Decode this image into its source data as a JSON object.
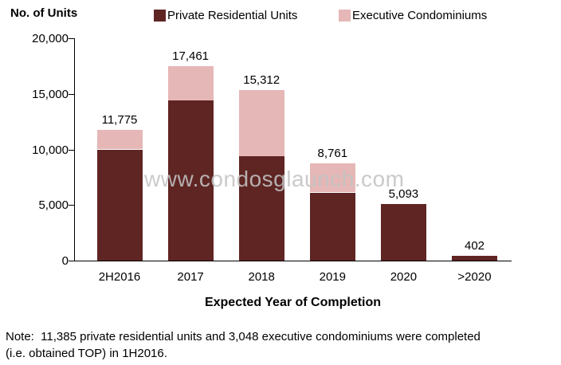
{
  "title": "No. of Units",
  "legend": {
    "items": [
      {
        "label": "Private Residential Units",
        "key": "private",
        "color": "#5F2523"
      },
      {
        "label": "Executive Condominiums",
        "key": "ec",
        "color": "#E5B7B6"
      }
    ]
  },
  "watermark": "www.condosglaunch.com",
  "x_axis_title": "Expected Year of Completion",
  "note": {
    "line1": "Note:  11,385 private residential units and 3,048 executive condominiums were completed",
    "line2": "(i.e. obtained TOP) in 1H2016."
  },
  "chart_data": {
    "type": "bar",
    "stacked": true,
    "title": "No. of Units",
    "xlabel": "Expected Year of Completion",
    "ylabel": "No. of Units",
    "categories": [
      "2H2016",
      "2017",
      "2018",
      "2019",
      "2020",
      ">2020"
    ],
    "series": [
      {
        "name": "Private Residential Units",
        "key": "private",
        "color": "#5F2523",
        "values": [
          10000,
          14427,
          9399,
          6127,
          5093,
          402
        ]
      },
      {
        "name": "Executive Condominiums",
        "key": "ec",
        "color": "#E5B7B6",
        "values": [
          1775,
          3034,
          5913,
          2634,
          0,
          0
        ]
      }
    ],
    "totals": [
      11775,
      17461,
      15312,
      8761,
      5093,
      402
    ],
    "total_labels": [
      "11,775",
      "17,461",
      "15,312",
      "8,761",
      "5,093",
      "402"
    ],
    "ylim": [
      0,
      20000
    ],
    "yticks": [
      0,
      5000,
      10000,
      15000,
      20000
    ],
    "ytick_labels": [
      "0",
      "5,000",
      "10,000",
      "15,000",
      "20,000"
    ],
    "grid": false,
    "legend_position": "top"
  }
}
